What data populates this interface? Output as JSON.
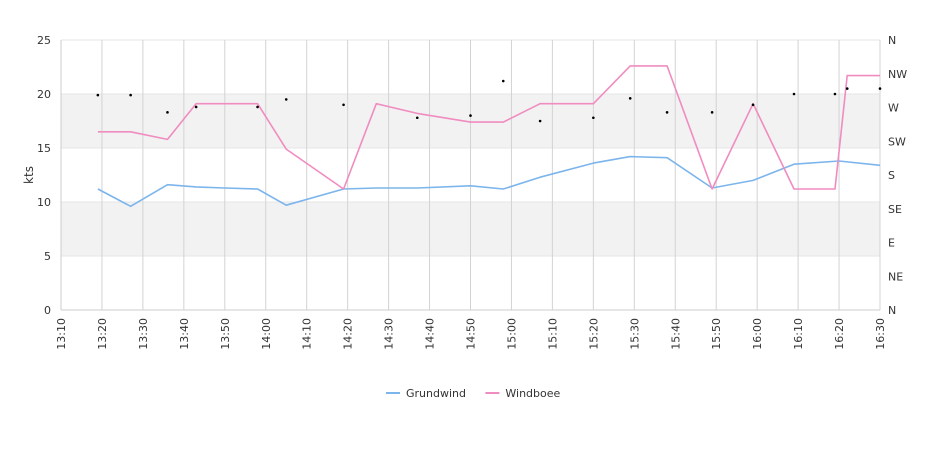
{
  "chart_data": {
    "type": "line",
    "ylabel": "kts",
    "ylim": [
      0,
      25
    ],
    "yticks": [
      0,
      5,
      10,
      15,
      20,
      25
    ],
    "y2_ticks": [
      "N",
      "NW",
      "W",
      "SW",
      "S",
      "SE",
      "E",
      "NE",
      "N"
    ],
    "x_ticks": [
      "13:10",
      "13:20",
      "13:30",
      "13:40",
      "13:50",
      "14:00",
      "14:10",
      "14:20",
      "14:30",
      "14:40",
      "14:50",
      "15:00",
      "15:10",
      "15:20",
      "15:30",
      "15:40",
      "15:50",
      "16:00",
      "16:10",
      "16:20",
      "16:30"
    ],
    "x_range_minutes": [
      790,
      990
    ],
    "bands": [
      [
        5,
        10
      ],
      [
        15,
        20
      ]
    ],
    "legend_position": "bottom-center",
    "colors": {
      "grundwind": "#7cb5ec",
      "windboee": "#f08cc0",
      "direction": "#000000"
    },
    "series": [
      {
        "name": "Grundwind",
        "x": [
          "13:19",
          "13:27",
          "13:36",
          "13:43",
          "13:50",
          "13:58",
          "14:05",
          "14:19",
          "14:27",
          "14:37",
          "14:50",
          "14:58",
          "15:07",
          "15:20",
          "15:29",
          "15:38",
          "15:49",
          "15:59",
          "16:09",
          "16:20",
          "16:30"
        ],
        "values": [
          11.2,
          9.6,
          11.6,
          11.4,
          11.3,
          11.2,
          9.7,
          11.2,
          11.3,
          11.3,
          11.5,
          11.2,
          12.3,
          13.6,
          14.2,
          14.1,
          11.3,
          12.0,
          13.5,
          13.8,
          13.4
        ]
      },
      {
        "name": "Windboee",
        "x": [
          "13:19",
          "13:27",
          "13:36",
          "13:43",
          "13:50",
          "13:58",
          "14:05",
          "14:19",
          "14:27",
          "14:37",
          "14:50",
          "14:58",
          "15:07",
          "15:20",
          "15:29",
          "15:38",
          "15:49",
          "15:59",
          "16:09",
          "16:19",
          "16:22",
          "16:30"
        ],
        "values": [
          16.5,
          16.5,
          15.8,
          19.1,
          19.1,
          19.1,
          14.9,
          11.2,
          19.1,
          18.2,
          17.4,
          17.4,
          19.1,
          19.1,
          22.6,
          22.6,
          11.2,
          19.1,
          11.2,
          11.2,
          21.7,
          21.7
        ]
      }
    ],
    "direction_points": {
      "x": [
        "13:19",
        "13:27",
        "13:36",
        "13:43",
        "13:58",
        "14:05",
        "14:19",
        "14:37",
        "14:50",
        "14:58",
        "15:07",
        "15:20",
        "15:29",
        "15:38",
        "15:49",
        "15:59",
        "16:09",
        "16:19",
        "16:22",
        "16:30"
      ],
      "values": [
        19.9,
        19.9,
        18.3,
        18.8,
        18.8,
        19.5,
        19.0,
        17.8,
        18.0,
        21.2,
        17.5,
        17.8,
        19.6,
        18.3,
        18.3,
        19.0,
        20.0,
        20.0,
        20.5,
        20.5
      ]
    }
  }
}
